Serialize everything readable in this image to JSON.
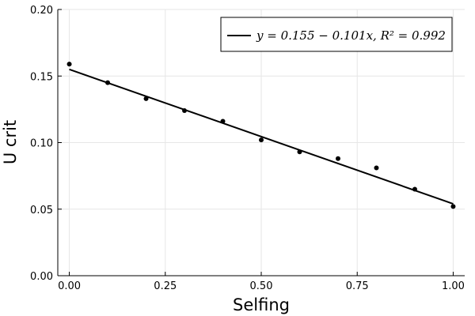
{
  "chart_data": {
    "type": "scatter",
    "xlabel": "Selfing",
    "ylabel": "U crit",
    "xlim": [
      -0.03,
      1.03
    ],
    "ylim": [
      0.0,
      0.2
    ],
    "xticks": [
      0.0,
      0.25,
      0.5,
      0.75,
      1.0
    ],
    "xtick_labels": [
      "0.00",
      "0.25",
      "0.50",
      "0.75",
      "1.00"
    ],
    "yticks": [
      0.0,
      0.05,
      0.1,
      0.15,
      0.2
    ],
    "ytick_labels": [
      "0.00",
      "0.05",
      "0.10",
      "0.15",
      "0.20"
    ],
    "grid": true,
    "legend_position": "top-right",
    "points": {
      "x": [
        0.0,
        0.1,
        0.2,
        0.3,
        0.4,
        0.5,
        0.6,
        0.7,
        0.8,
        0.9,
        1.0
      ],
      "y": [
        0.159,
        0.145,
        0.133,
        0.124,
        0.116,
        0.102,
        0.093,
        0.088,
        0.081,
        0.065,
        0.052
      ]
    },
    "fit": {
      "intercept": 0.155,
      "slope": -0.101,
      "label": "y = 0.155 − 0.101x, R² = 0.992",
      "color": "#000000"
    },
    "marker_color": "#000000"
  }
}
